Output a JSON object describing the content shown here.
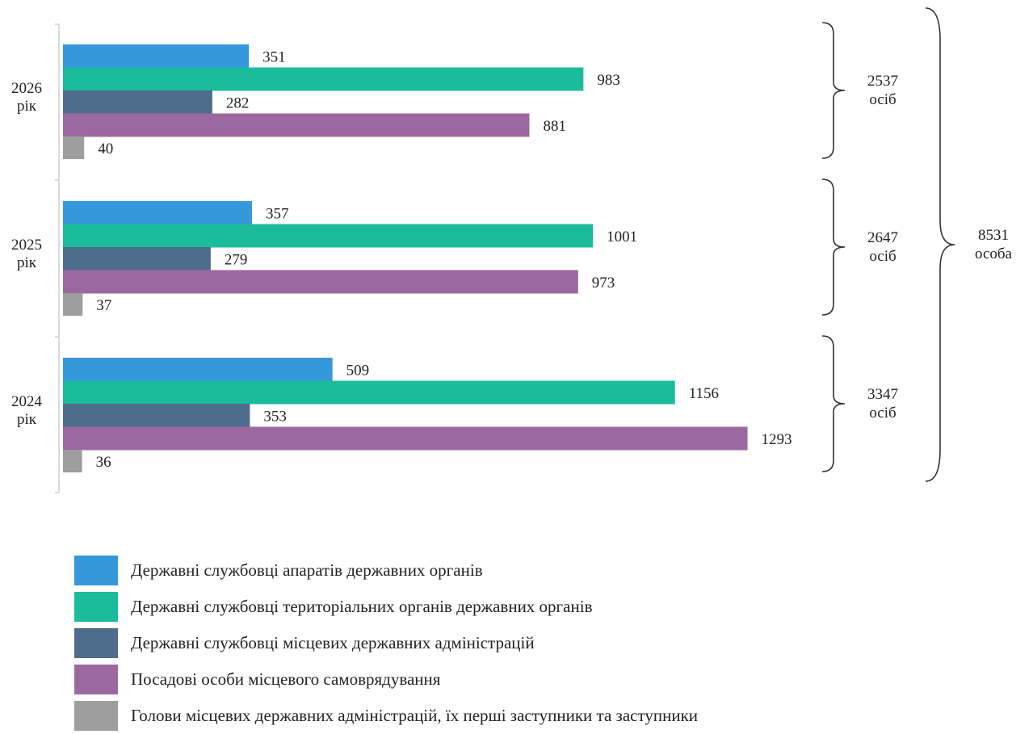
{
  "chart_data": {
    "type": "bar",
    "orientation": "horizontal",
    "categories": [
      "2026 рік",
      "2025 рік",
      "2024 рік"
    ],
    "category_lines": [
      [
        "2026",
        "рік"
      ],
      [
        "2025",
        "рік"
      ],
      [
        "2024",
        "рік"
      ]
    ],
    "series": [
      {
        "name": "Державні службовці апаратів державних органів",
        "color": "#3598db",
        "values": [
          351,
          357,
          509
        ]
      },
      {
        "name": "Державні службовці територіальних органів державних органів",
        "color": "#1abc9c",
        "values": [
          983,
          1001,
          1156
        ]
      },
      {
        "name": "Державні службовці місцевих державних адміністрацій",
        "color": "#4e6d8c",
        "values": [
          282,
          279,
          353
        ]
      },
      {
        "name": "Посадові особи місцевого самоврядування",
        "color": "#9b69a0",
        "values": [
          881,
          973,
          1293
        ]
      },
      {
        "name": "Голови місцевих державних адміністрацій, їх перші заступники та заступники",
        "color": "#9e9e9e",
        "values": [
          40,
          37,
          36
        ]
      }
    ],
    "group_totals": [
      {
        "value": "2537",
        "unit": "осіб"
      },
      {
        "value": "2647",
        "unit": "осіб"
      },
      {
        "value": "3347",
        "unit": "осіб"
      }
    ],
    "grand_total": {
      "value": "8531",
      "unit": "особа"
    },
    "xlim": [
      0,
      1400
    ],
    "grid": false,
    "legend_position": "bottom-left",
    "title": "",
    "xlabel": "",
    "ylabel": ""
  }
}
